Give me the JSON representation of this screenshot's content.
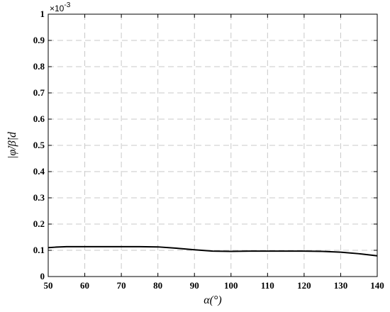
{
  "chart_data": {
    "type": "line",
    "xlabel": "α(°)",
    "ylabel": "|φ̇/β̇|d",
    "y_scale_factor": "×10",
    "y_scale_exponent": "-3",
    "xlim": [
      50,
      140
    ],
    "ylim": [
      0,
      1
    ],
    "grid": true,
    "x_ticks": [
      "50",
      "60",
      "70",
      "80",
      "90",
      "100",
      "110",
      "120",
      "130",
      "140"
    ],
    "y_ticks": [
      "0",
      "0.1",
      "0.2",
      "0.3",
      "0.4",
      "0.5",
      "0.6",
      "0.7",
      "0.8",
      "0.9",
      "1"
    ],
    "series": [
      {
        "color": "#000000",
        "x": [
          50,
          52,
          55,
          60,
          65,
          70,
          75,
          80,
          85,
          90,
          95,
          100,
          105,
          110,
          115,
          120,
          125,
          130,
          135,
          140
        ],
        "y": [
          0.11,
          0.112,
          0.114,
          0.114,
          0.114,
          0.114,
          0.114,
          0.113,
          0.108,
          0.102,
          0.097,
          0.096,
          0.097,
          0.097,
          0.097,
          0.097,
          0.096,
          0.093,
          0.087,
          0.079
        ]
      }
    ]
  }
}
